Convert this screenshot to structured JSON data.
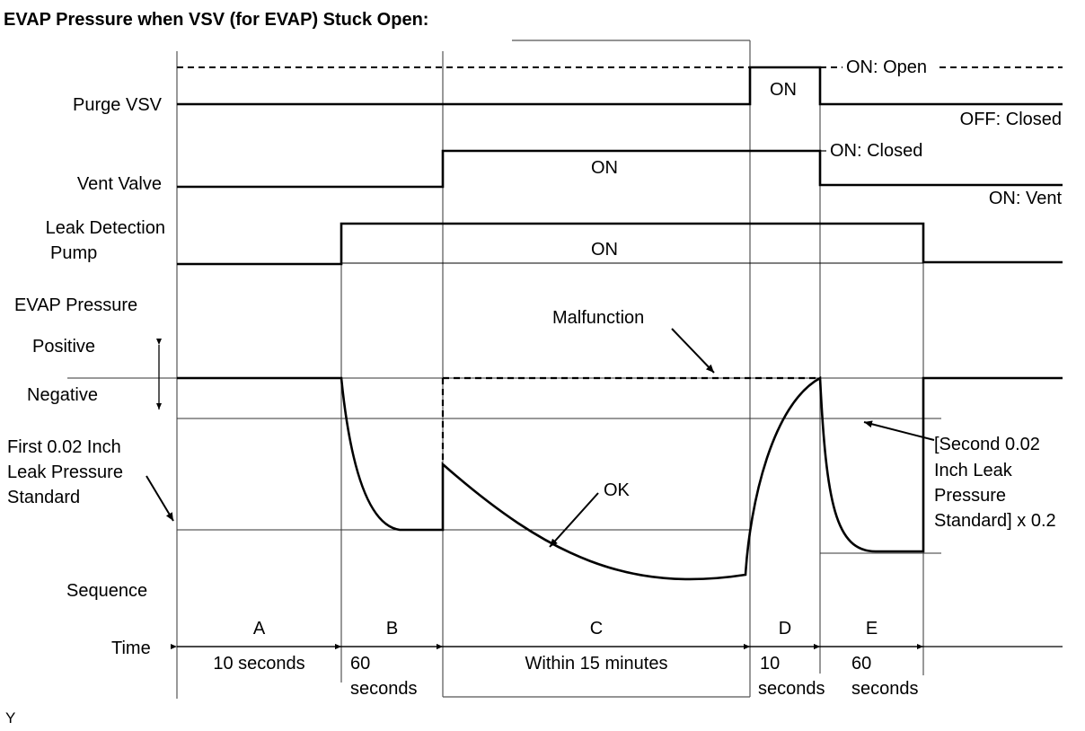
{
  "title": "EVAP Pressure when VSV (for EVAP) Stuck Open:",
  "row_labels": {
    "purge_vsv": "Purge VSV",
    "vent_valve": "Vent Valve",
    "leak_pump_1": "Leak Detection",
    "leak_pump_2": "Pump",
    "evap_pressure": "EVAP Pressure",
    "positive": "Positive",
    "negative": "Negative",
    "first_std_1": "First 0.02 Inch",
    "first_std_2": "Leak Pressure",
    "first_std_3": "Standard",
    "sequence": "Sequence",
    "time": "Time"
  },
  "signal_labels": {
    "purge_on": "ON",
    "purge_on_state": "ON: Open",
    "purge_off_state": "OFF: Closed",
    "vent_on": "ON",
    "vent_on_state": "ON: Closed",
    "vent_off_state": "ON: Vent",
    "pump_on": "ON"
  },
  "annotations": {
    "malfunction": "Malfunction",
    "ok": "OK",
    "second_std_1": "[Second 0.02",
    "second_std_2": "Inch Leak",
    "second_std_3": "Pressure",
    "second_std_4": "Standard] x 0.2"
  },
  "sequence": [
    {
      "id": "A",
      "time": "10 seconds"
    },
    {
      "id": "B",
      "time_1": "60",
      "time_2": "seconds"
    },
    {
      "id": "C",
      "time": "Within 15 minutes"
    },
    {
      "id": "D",
      "time_1": "10",
      "time_2": "seconds"
    },
    {
      "id": "E",
      "time_1": "60",
      "time_2": "seconds"
    }
  ],
  "footer_code": "Y"
}
